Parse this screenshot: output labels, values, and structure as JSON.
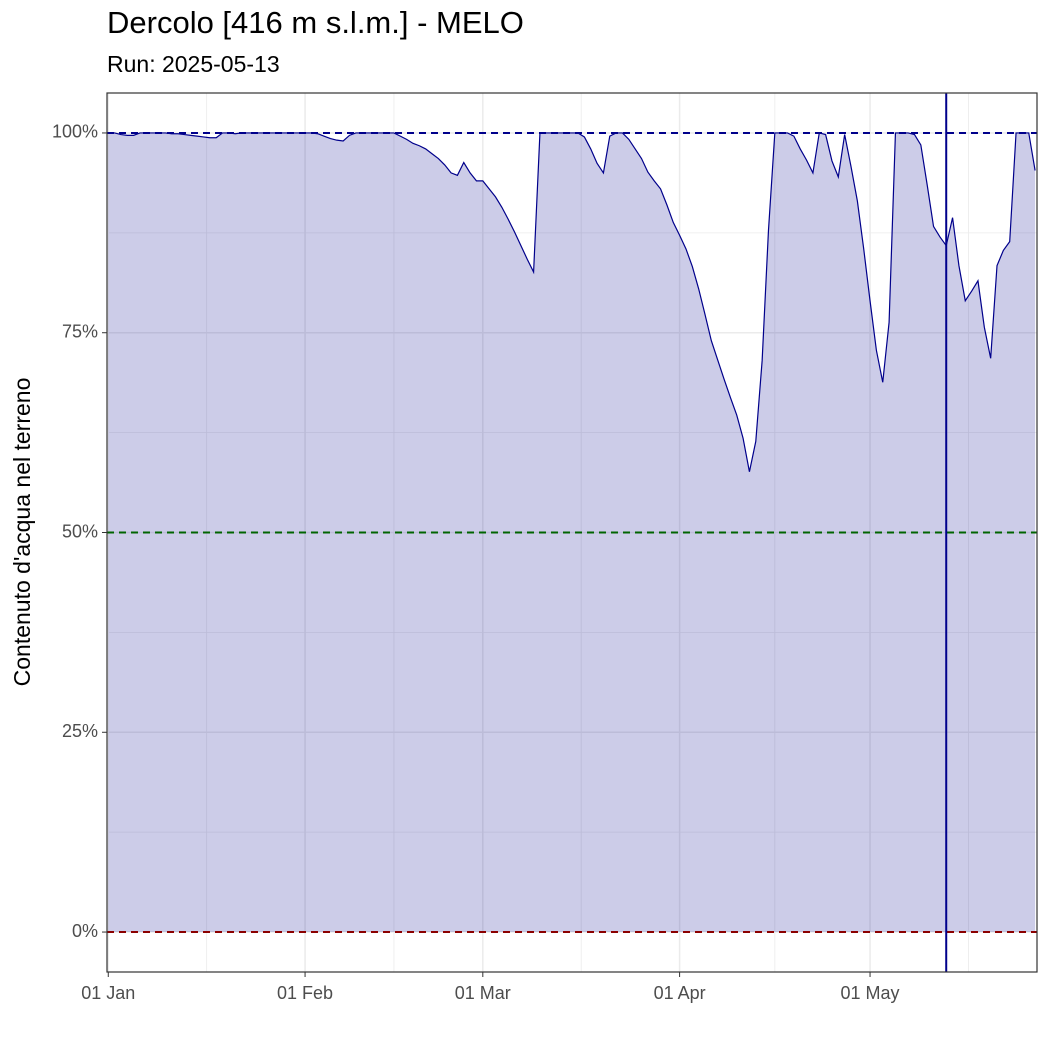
{
  "chart_data": {
    "type": "area",
    "title": "Dercolo [416 m s.l.m.] - MELO",
    "subtitle": "Run: 2025-05-13",
    "y_label": "Contenuto d'acqua nel terreno",
    "color": "#00008b",
    "fill": "rgba(0,0,139,0.2)",
    "x": [
      0,
      1,
      2,
      3,
      4,
      5,
      6,
      7,
      8,
      9,
      10,
      11,
      12,
      13,
      14,
      15,
      16,
      17,
      18,
      19,
      20,
      21,
      22,
      23,
      24,
      25,
      26,
      27,
      28,
      29,
      30,
      31,
      32,
      33,
      34,
      35,
      36,
      37,
      38,
      39,
      40,
      41,
      42,
      43,
      44,
      45,
      46,
      47,
      48,
      49,
      50,
      51,
      52,
      53,
      54,
      55,
      56,
      57,
      58,
      59,
      60,
      61,
      62,
      63,
      64,
      65,
      66,
      67,
      68,
      69,
      70,
      71,
      72,
      73,
      74,
      75,
      76,
      77,
      78,
      79,
      80,
      81,
      82,
      83,
      84,
      85,
      86,
      87,
      88,
      89,
      90,
      91,
      92,
      93,
      94,
      95,
      96,
      97,
      98,
      99,
      100,
      101,
      102,
      103,
      104,
      105,
      106,
      107,
      108,
      109,
      110,
      111,
      112,
      113,
      114,
      115,
      116,
      117,
      118,
      119,
      120,
      121,
      122,
      123,
      124,
      125,
      126,
      127,
      128,
      129,
      130,
      131,
      132,
      133,
      134,
      135,
      136,
      137,
      138,
      139,
      140,
      141,
      142,
      143,
      144,
      145,
      146
    ],
    "values": [
      100,
      100,
      99.8,
      99.7,
      99.7,
      100,
      100,
      100,
      100,
      100,
      99.9,
      99.9,
      99.8,
      99.7,
      99.6,
      99.5,
      99.4,
      99.4,
      100,
      100,
      99.9,
      100,
      100,
      100,
      100,
      100,
      100,
      100,
      100,
      100,
      100,
      100,
      100,
      99.9,
      99.6,
      99.3,
      99.1,
      99.0,
      99.7,
      100,
      100,
      100,
      100,
      100,
      100,
      100,
      99.6,
      99.2,
      98.7,
      98.4,
      98.0,
      97.4,
      96.8,
      96.0,
      95.0,
      94.7,
      96.3,
      95.0,
      94.0,
      94.0,
      93.0,
      92.0,
      90.7,
      89.2,
      87.6,
      85.9,
      84.2,
      82.6,
      100,
      100,
      100,
      100,
      100,
      100,
      100,
      99.5,
      98,
      96.2,
      95.0,
      99.6,
      100,
      100,
      99.2,
      98.0,
      96.8,
      95.1,
      94.0,
      93.0,
      91.0,
      88.8,
      87.2,
      85.5,
      83.3,
      80.5,
      77.3,
      74.0,
      71.6,
      69.2,
      66.9,
      64.7,
      61.8,
      57.6,
      61.4,
      71.5,
      87.8,
      100,
      100,
      100,
      99.6,
      98.0,
      96.6,
      95.0,
      100,
      99.8,
      96.5,
      94.5,
      99.8,
      95.8,
      91.5,
      85.5,
      79.0,
      72.8,
      68.8,
      76.3,
      100,
      100,
      100,
      99.8,
      98.5,
      93.5,
      88.3,
      87.0,
      85.9,
      89.4,
      83.4,
      79.0,
      80.2,
      81.5,
      75.7,
      71.8,
      83.4,
      85.3,
      86.4,
      100,
      100,
      100,
      95.3
    ],
    "xlim": [
      -0.2,
      146.3
    ],
    "ylim": [
      -5,
      105
    ],
    "xticks": [
      {
        "value": 0,
        "label": "01 Jan"
      },
      {
        "value": 31,
        "label": "01 Feb"
      },
      {
        "value": 59,
        "label": "01 Mar"
      },
      {
        "value": 90,
        "label": "01 Apr"
      },
      {
        "value": 120,
        "label": "01 May"
      }
    ],
    "minor_xticks": [
      15.5,
      45,
      74.5,
      105,
      135.5
    ],
    "yticks": [
      {
        "value": 0,
        "label": "0%"
      },
      {
        "value": 25,
        "label": "25%"
      },
      {
        "value": 50,
        "label": "50%"
      },
      {
        "value": 75,
        "label": "75%"
      },
      {
        "value": 100,
        "label": "100%"
      }
    ],
    "minor_yticks": [
      12.5,
      37.5,
      62.5,
      87.5
    ],
    "grid": true,
    "hlines": [
      {
        "value": 100,
        "color": "#00008b"
      },
      {
        "value": 50,
        "color": "#006400"
      },
      {
        "value": 0,
        "color": "#8b0000"
      }
    ],
    "vlines": [
      {
        "value": 132,
        "color": "#00008b"
      }
    ]
  }
}
